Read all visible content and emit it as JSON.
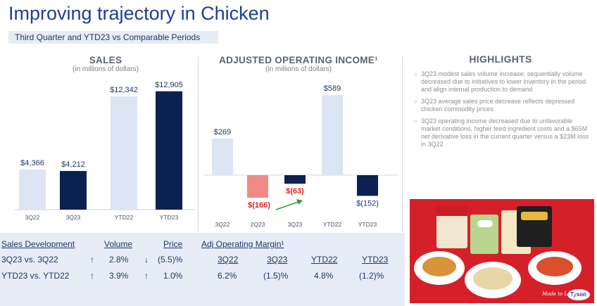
{
  "title": "Improving trajectory in Chicken",
  "subtitle": "Third Quarter and YTD23 vs Comparable Periods",
  "sales": {
    "title": "SALES",
    "unit": "(in millions of dollars)"
  },
  "aoi": {
    "title": "ADJUSTED OPERATING INCOME¹",
    "unit": "(in millions of dollars)"
  },
  "chart_data": [
    {
      "type": "bar",
      "title": "SALES",
      "subtitle": "(in millions of dollars)",
      "categories": [
        "3Q22",
        "3Q23",
        "YTD22",
        "YTD23"
      ],
      "values": [
        4366,
        4212,
        12342,
        12905
      ],
      "labels": [
        "$4,366",
        "$4,212",
        "$12,342",
        "$12,905"
      ],
      "colors": [
        "#dbe5f4",
        "#0d2150",
        "#dbe5f4",
        "#0d2150"
      ],
      "ylim": [
        0,
        13500
      ]
    },
    {
      "type": "bar",
      "title": "ADJUSTED OPERATING INCOME¹",
      "subtitle": "(in millions of dollars)",
      "categories": [
        "3Q22",
        "2Q23",
        "3Q23",
        "YTD22",
        "YTD23"
      ],
      "values": [
        269,
        -166,
        -63,
        589,
        -152
      ],
      "labels": [
        "$269",
        "$(166)",
        "$(63)",
        "$589",
        "$(152)"
      ],
      "colors": [
        "#dbe5f4",
        "#f08a86",
        "#0d2150",
        "#dbe5f4",
        "#0d2150"
      ],
      "label_colors": [
        "#1f3864",
        "#e0201b",
        "#e0201b",
        "#1f3864",
        "#1f3864"
      ],
      "ylim": [
        -200,
        650
      ]
    }
  ],
  "sales_dev": {
    "headers": [
      "Sales Development",
      "Volume",
      "Price"
    ],
    "rows": [
      {
        "label": "3Q23 vs. 3Q22",
        "vol_arrow": "↑",
        "vol": "2.8%",
        "price_arrow": "↓",
        "price": "(5.5)%"
      },
      {
        "label": "YTD23 vs. YTD22",
        "vol_arrow": "↑",
        "vol": "3.9%",
        "price_arrow": "↑",
        "price": "1.0%"
      }
    ]
  },
  "margin": {
    "title": "Adj Operating Margin¹",
    "headers": [
      "3Q22",
      "3Q23",
      "YTD22",
      "YTD23"
    ],
    "values": [
      "6.2%",
      "(1.5)%",
      "4.8%",
      "(1.2)%"
    ]
  },
  "highlights": {
    "title": "HIGHLIGHTS",
    "bullet": "○",
    "items": [
      "3Q23 modest sales volume increase; sequentially volume decreased due to initiatives to lower inventory in the period and align internal production to demand",
      "3Q23 average sales price decrease reflects depressed chicken commodity prices",
      "3Q23 operating income decreased due to unfavorable market conditions, higher feed ingredient costs and a $65M net derivative loss in the current quarter versus a $23M loss in 3Q22"
    ]
  },
  "photo": {
    "brand": "Tyson",
    "tagline": "Made to Love"
  }
}
